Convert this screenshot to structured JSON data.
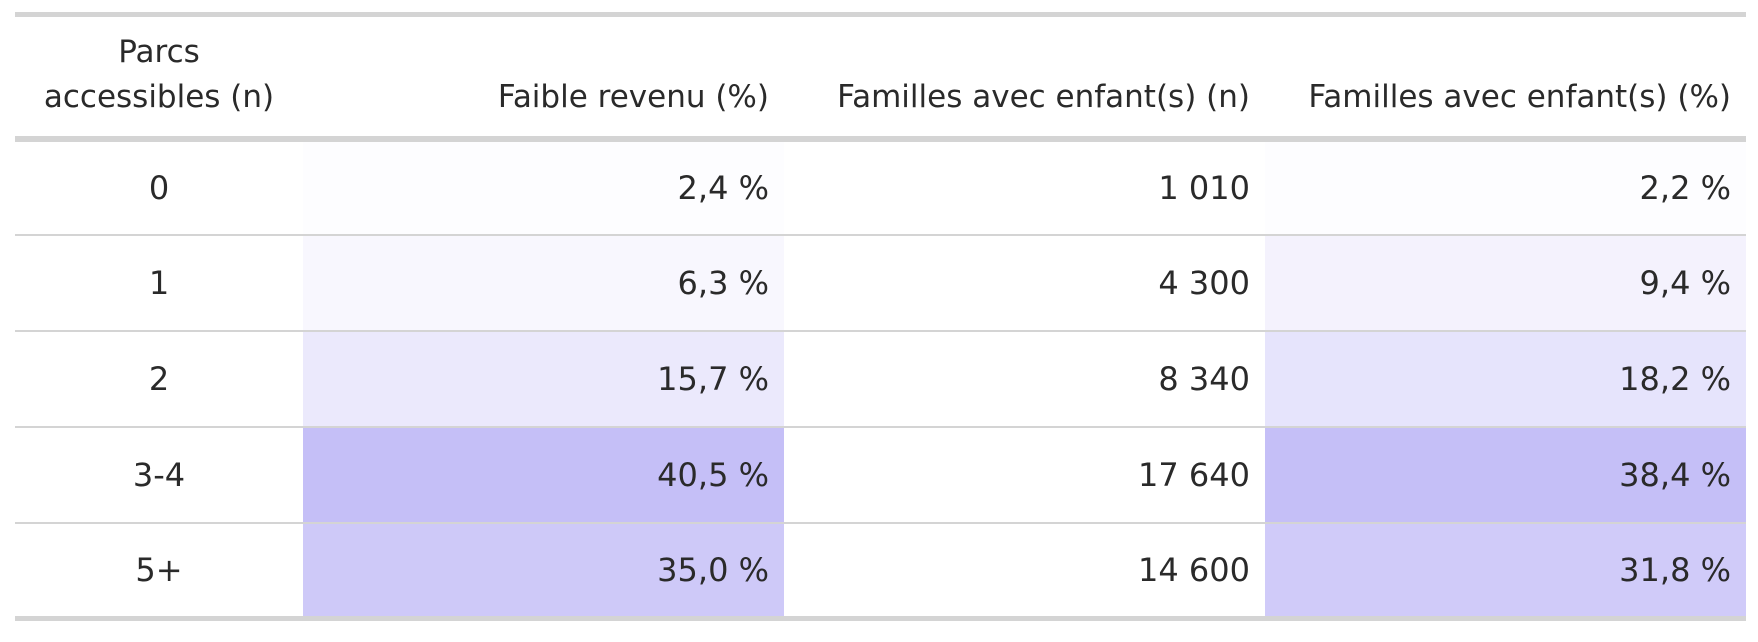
{
  "chart_data": {
    "type": "table",
    "columns": [
      "Parcs accessibles (n)",
      "Faible revenu (%)",
      "Familles avec enfant(s) (n)",
      "Familles avec enfant(s) (%)"
    ],
    "heatmap_palette": {
      "low": "#ffffff",
      "high": "#c5bff7"
    },
    "rows": [
      {
        "parcs": "0",
        "faible_revenu": "2,4 %",
        "faible_revenu_value": 2.4,
        "familles_n": "1 010",
        "familles_pct": "2,2 %",
        "familles_pct_value": 2.2
      },
      {
        "parcs": "1",
        "faible_revenu": "6,3 %",
        "faible_revenu_value": 6.3,
        "familles_n": "4 300",
        "familles_pct": "9,4 %",
        "familles_pct_value": 9.4
      },
      {
        "parcs": "2",
        "faible_revenu": "15,7 %",
        "faible_revenu_value": 15.7,
        "familles_n": "8 340",
        "familles_pct": "18,2 %",
        "familles_pct_value": 18.2
      },
      {
        "parcs": "3-4",
        "faible_revenu": "40,5 %",
        "faible_revenu_value": 40.5,
        "familles_n": "17 640",
        "familles_pct": "38,4 %",
        "familles_pct_value": 38.4
      },
      {
        "parcs": "5+",
        "faible_revenu": "35,0 %",
        "faible_revenu_value": 35.0,
        "familles_n": "14 600",
        "familles_pct": "31,8 %",
        "familles_pct_value": 31.8
      }
    ]
  }
}
